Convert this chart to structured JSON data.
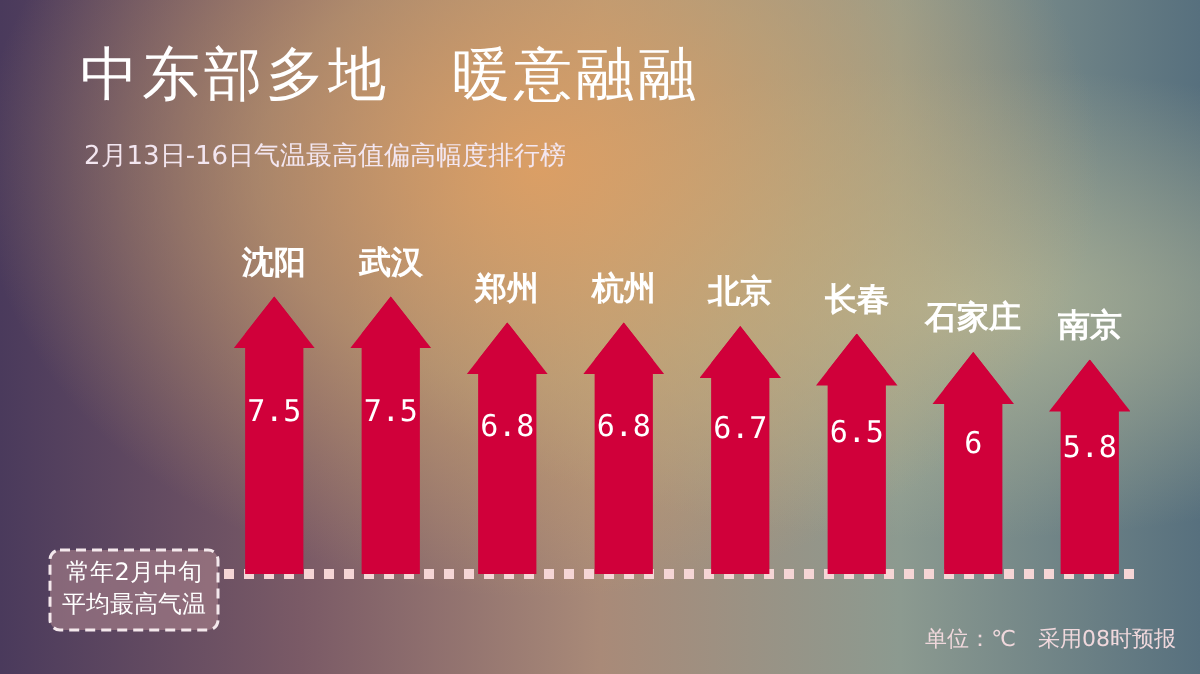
{
  "chart_data": {
    "type": "bar",
    "title": "中东部多地　暖意融融",
    "subtitle": "2月13日-16日气温最高值偏高幅度排行榜",
    "categories": [
      "沈阳",
      "武汉",
      "郑州",
      "杭州",
      "北京",
      "长春",
      "石家庄",
      "南京"
    ],
    "values": [
      7.5,
      7.5,
      6.8,
      6.8,
      6.7,
      6.5,
      6,
      5.8
    ],
    "color": "#d0003a",
    "data_labels": true,
    "tick_labels": false,
    "ref_lines": [
      {
        "axis": "y",
        "value": 0,
        "label": "常年2月中旬平均最高气温",
        "color": "#f5d5d5",
        "line_style": "dotted"
      }
    ],
    "annotations": [
      "单位：℃　采用08时预报"
    ]
  }
}
